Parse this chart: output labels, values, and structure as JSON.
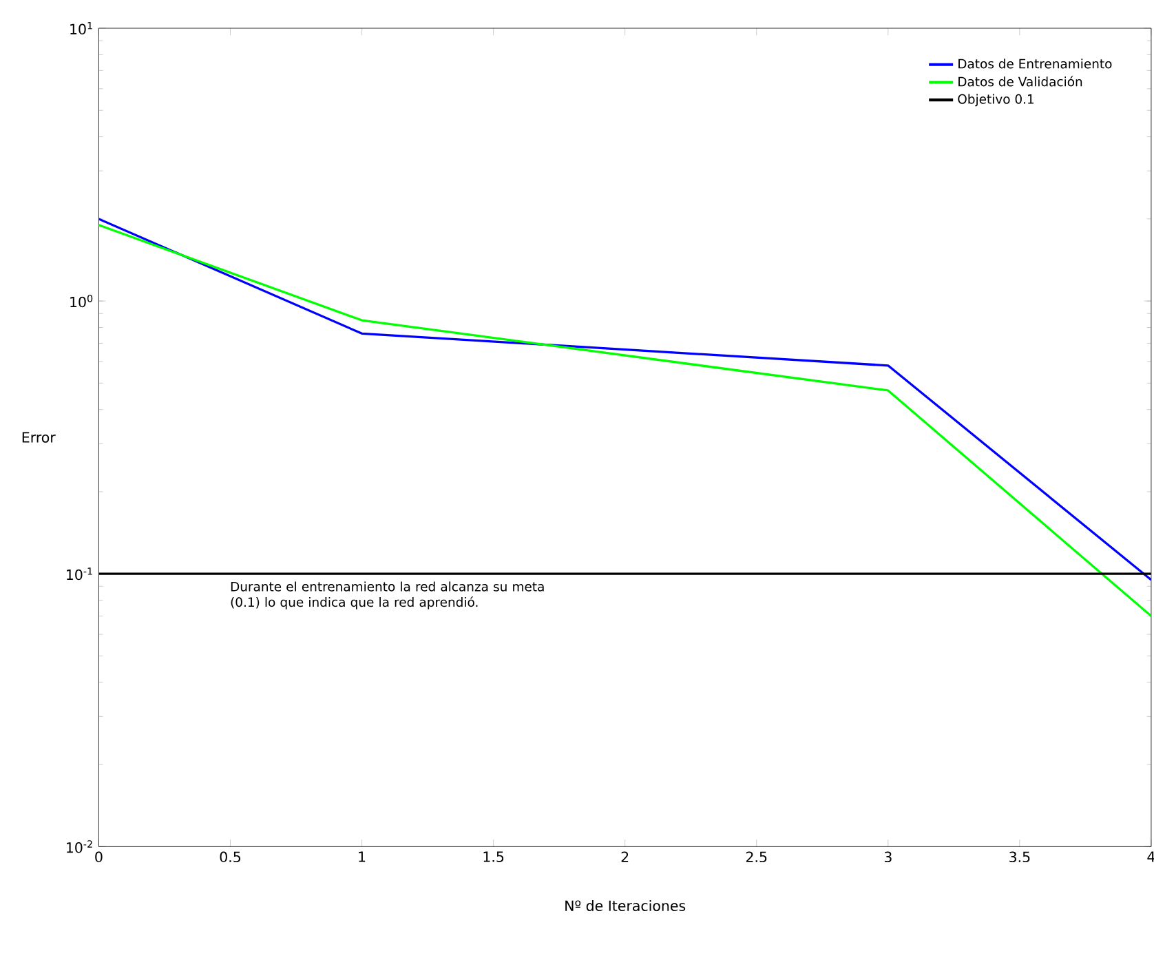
{
  "chart_data": {
    "type": "line",
    "xlabel": "Nº de Iteraciones",
    "ylabel": "Error",
    "log": "y",
    "x": [
      0,
      1,
      3,
      4
    ],
    "series": [
      {
        "name": "Datos de Entrenamiento",
        "color": "#0000ff",
        "values": [
          2.0,
          0.76,
          0.58,
          0.095
        ]
      },
      {
        "name": "Datos de Validación",
        "color": "#00ff00",
        "values": [
          1.9,
          0.85,
          0.47,
          0.07
        ]
      }
    ],
    "ref_lines": [
      {
        "axis": "y",
        "value": 0.1,
        "label": "Objetivo 0.1",
        "color": "#000000"
      }
    ],
    "xlim": [
      0,
      4
    ],
    "ylim": [
      0.01,
      10
    ],
    "xticks": [
      0,
      0.5,
      1,
      1.5,
      2,
      2.5,
      3,
      3.5,
      4
    ],
    "yticks": [
      {
        "value": 0.01,
        "label": "10$^{-2}$"
      },
      {
        "value": 0.1,
        "label": "10$^{-1}$"
      },
      {
        "value": 1,
        "label": "10$^{0}$"
      },
      {
        "value": 10,
        "label": "10$^{1}$"
      }
    ],
    "annotations": [
      "Durante el entrenamiento la red alcanza su meta (0.1) lo que indica que la red aprendió."
    ],
    "legend": "top right",
    "grid": false,
    "marker": "none",
    "line_style": "solid"
  }
}
